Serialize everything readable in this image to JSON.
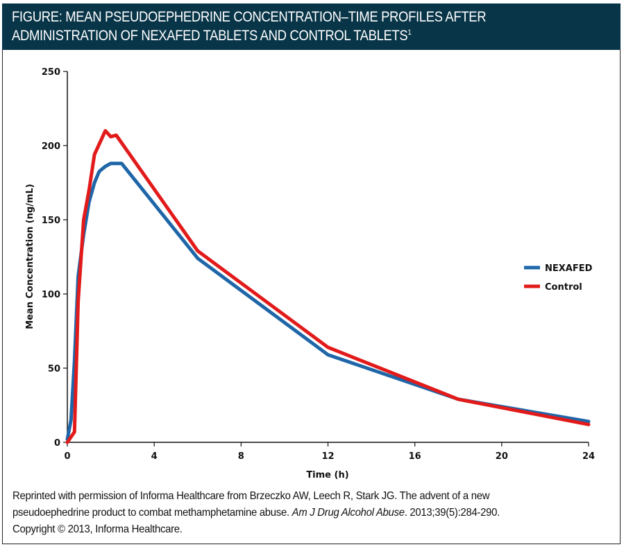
{
  "figure": {
    "title_line1": "FIGURE: MEAN PSEUDOEPHEDRINE CONCENTRATION–TIME PROFILES AFTER",
    "title_line2": "ADMINISTRATION OF NEXAFED TABLETS AND CONTROL TABLETS",
    "title_superscript": "1",
    "header_color": "#083548",
    "footer": {
      "part1": "Reprinted with permission of Informa Healthcare from Brzeczko AW, Leech R, Stark JG. The advent of a new",
      "part2a": "pseudoephedrine product to combat methamphetamine abuse. ",
      "journal": "Am J Drug Alcohol Abuse",
      "part2b": ". 2013;39(5):284-290.",
      "part3": "Copyright © 2013, Informa Healthcare."
    }
  },
  "chart_data": {
    "type": "line",
    "title": "Mean Pseudoephedrine Concentration–Time Profiles After Administration of Nexafed Tablets and Control Tablets",
    "xlabel": "Time (h)",
    "ylabel": "Mean Concentration (ng/mL)",
    "xlim": [
      0,
      24
    ],
    "ylim": [
      0,
      250
    ],
    "xticks": [
      0,
      4,
      8,
      12,
      16,
      20,
      24
    ],
    "yticks": [
      0,
      50,
      100,
      150,
      200,
      250
    ],
    "grid": false,
    "legend_position": "right",
    "series": [
      {
        "name": "NEXAFED",
        "color": "#1f66a8",
        "x": [
          0,
          0.17,
          0.33,
          0.5,
          0.75,
          1.0,
          1.25,
          1.45,
          1.5,
          1.75,
          2.0,
          2.5,
          6,
          12,
          18,
          24
        ],
        "y": [
          2,
          15,
          55,
          112,
          140,
          162,
          175,
          182,
          183,
          186,
          188,
          188,
          124,
          59,
          29,
          14
        ]
      },
      {
        "name": "Control",
        "color": "#e21a1a",
        "x": [
          0,
          0.33,
          0.5,
          0.75,
          1.0,
          1.25,
          1.75,
          2.0,
          2.25,
          6,
          12,
          18,
          24
        ],
        "y": [
          0,
          7,
          95,
          150,
          170,
          194,
          210,
          206,
          207,
          129,
          64,
          29,
          12
        ]
      }
    ]
  }
}
